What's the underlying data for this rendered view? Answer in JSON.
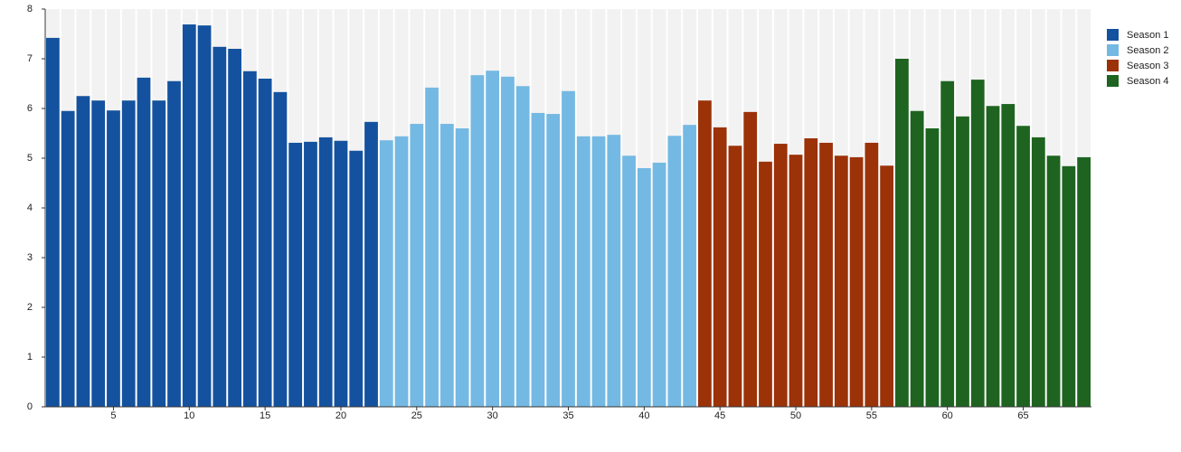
{
  "chart_data": {
    "type": "bar",
    "xlim": [
      0.5,
      69.5
    ],
    "xticks": [
      5,
      10,
      15,
      20,
      25,
      30,
      35,
      40,
      45,
      50,
      55,
      60,
      65
    ],
    "ylim": [
      0,
      8
    ],
    "yticks": [
      0,
      1,
      2,
      3,
      4,
      5,
      6,
      7,
      8
    ],
    "legend": "top-right",
    "series": [
      {
        "name": "Season 1",
        "color": "#14529f",
        "x": [
          1,
          2,
          3,
          4,
          5,
          6,
          7,
          8,
          9,
          10,
          11,
          12,
          13,
          14,
          15,
          16,
          17,
          18,
          19,
          20,
          21,
          22
        ],
        "values": [
          7.42,
          5.95,
          6.25,
          6.16,
          5.96,
          6.16,
          6.62,
          6.16,
          6.55,
          7.69,
          7.67,
          7.24,
          7.2,
          6.75,
          6.6,
          6.33,
          5.31,
          5.33,
          5.42,
          5.35,
          5.15,
          5.73
        ]
      },
      {
        "name": "Season 2",
        "color": "#74b9e3",
        "x": [
          23,
          24,
          25,
          26,
          27,
          28,
          29,
          30,
          31,
          32,
          33,
          34,
          35,
          36,
          37,
          38,
          39,
          40,
          41,
          42,
          43
        ],
        "values": [
          5.36,
          5.44,
          5.69,
          6.42,
          5.69,
          5.6,
          6.67,
          6.76,
          6.64,
          6.45,
          5.91,
          5.89,
          6.35,
          5.44,
          5.44,
          5.47,
          5.05,
          4.8,
          4.91,
          5.45,
          5.67
        ]
      },
      {
        "name": "Season 3",
        "color": "#9c3208",
        "x": [
          44,
          45,
          46,
          47,
          48,
          49,
          50,
          51,
          52,
          53,
          54,
          55,
          56
        ],
        "values": [
          6.16,
          5.62,
          5.25,
          5.93,
          4.93,
          5.29,
          5.07,
          5.4,
          5.31,
          5.05,
          5.02,
          5.31,
          4.85
        ]
      },
      {
        "name": "Season 4",
        "color": "#1e6420",
        "x": [
          57,
          58,
          59,
          60,
          61,
          62,
          63,
          64,
          65,
          66,
          67,
          68,
          69
        ],
        "values": [
          7.0,
          5.95,
          5.6,
          6.55,
          5.84,
          6.58,
          6.05,
          6.09,
          5.65,
          5.42,
          5.05,
          4.84,
          5.02
        ]
      }
    ]
  }
}
